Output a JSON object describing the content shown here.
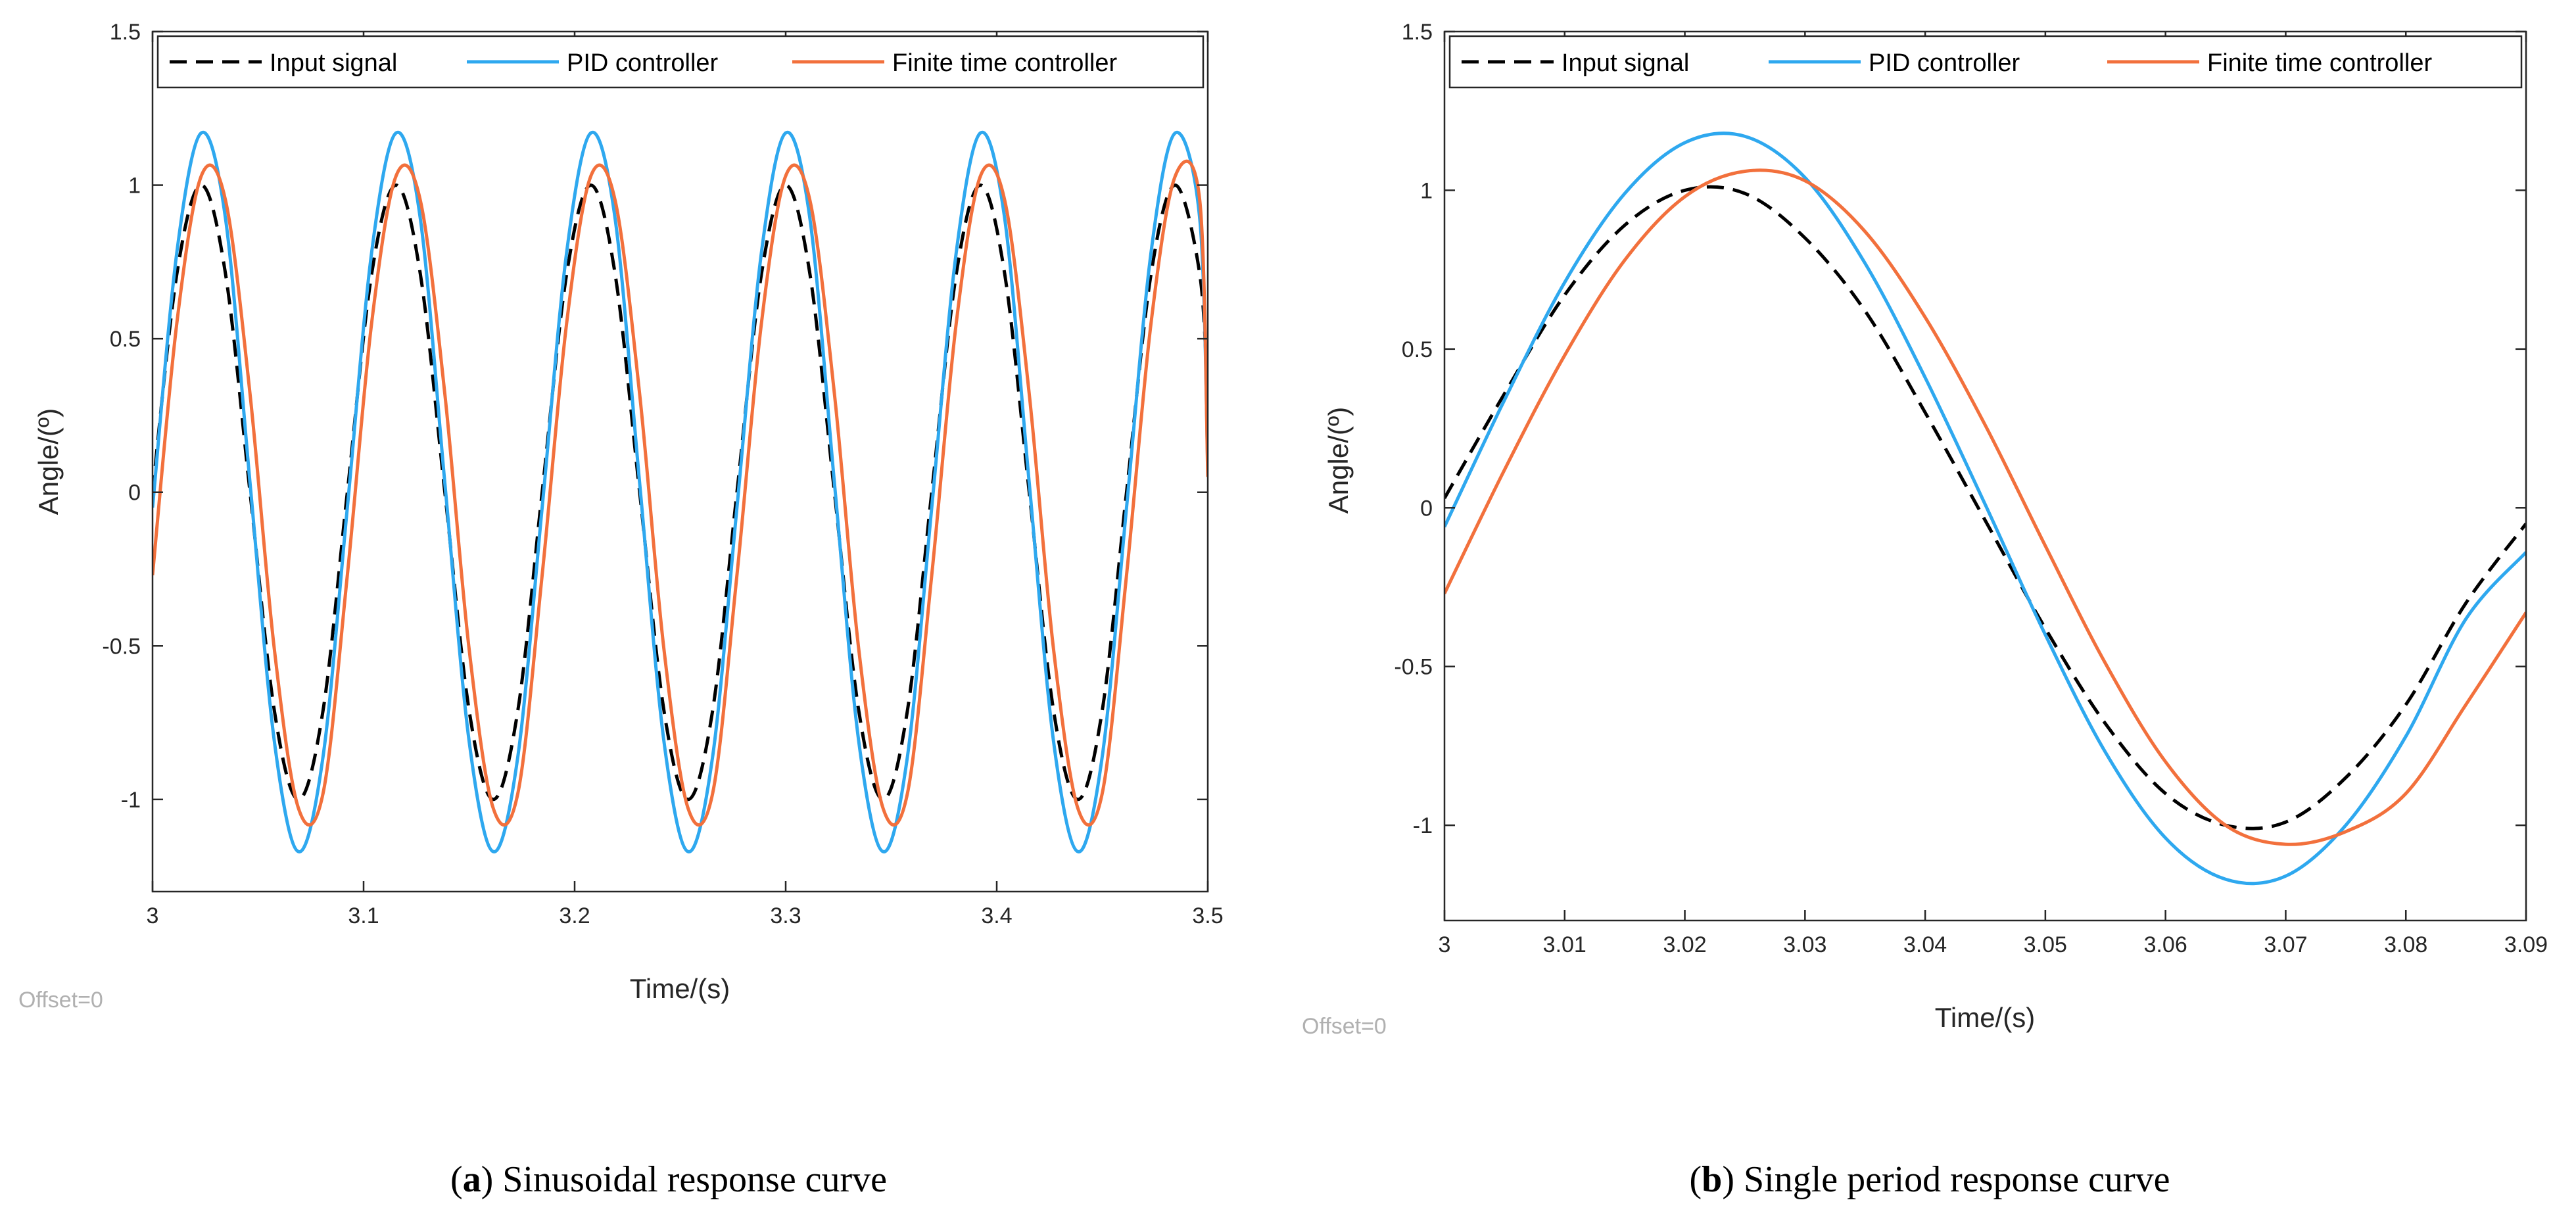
{
  "chart_data": [
    {
      "type": "line",
      "panel_label": "a",
      "caption": "Sinusoidal response curve",
      "xlabel": "Time/(s)",
      "ylabel": "Angle/(º)",
      "offset_text": "Offset=0",
      "xlim": [
        3,
        3.5
      ],
      "ylim": [
        -1.3,
        1.5
      ],
      "xticks": [
        3,
        3.1,
        3.2,
        3.3,
        3.4,
        3.5
      ],
      "xtick_labels": [
        "3",
        "3.1",
        "3.2",
        "3.3",
        "3.4",
        "3.5"
      ],
      "yticks": [
        -1,
        -0.5,
        0,
        0.5,
        1,
        1.5
      ],
      "ytick_labels": [
        "-1",
        "-0.5",
        "0",
        "0.5",
        "1",
        "1.5"
      ],
      "grid": false,
      "legend_position": "top",
      "series": [
        {
          "name": "Input signal",
          "color": "#000000",
          "style": "dashed",
          "x": [
            3,
            3.0115,
            3.0231,
            3.0346,
            3.0462,
            3.0577,
            3.0692,
            3.0808,
            3.0923,
            3.1038,
            3.1154,
            3.1269,
            3.1385,
            3.15,
            3.1615,
            3.1731,
            3.1846,
            3.1962,
            3.2077,
            3.2192,
            3.2308,
            3.2423,
            3.2538,
            3.2654,
            3.2769,
            3.2885,
            3.3,
            3.3115,
            3.3231,
            3.3346,
            3.3462,
            3.3577,
            3.3692,
            3.3808,
            3.3923,
            3.4038,
            3.4154,
            3.4269,
            3.4385,
            3.45,
            3.4615,
            3.4731,
            3.4846,
            3.4962,
            3.5
          ],
          "y": [
            0,
            0.71,
            1,
            0.71,
            0,
            -0.71,
            -1,
            -0.71,
            0,
            0.71,
            1,
            0.71,
            0,
            -0.71,
            -1,
            -0.71,
            0,
            0.71,
            1,
            0.71,
            0,
            -0.71,
            -1,
            -0.71,
            0,
            0.71,
            1,
            0.71,
            0,
            -0.71,
            -1,
            -0.71,
            0,
            0.71,
            1,
            0.71,
            0,
            -0.71,
            -1,
            -0.71,
            0,
            0.71,
            1,
            0.71,
            0.29
          ]
        },
        {
          "name": "PID controller",
          "color": "#2ea8ef",
          "style": "solid",
          "x": [
            3,
            3.0115,
            3.0231,
            3.0346,
            3.0462,
            3.0577,
            3.0692,
            3.0808,
            3.0923,
            3.1038,
            3.1154,
            3.1269,
            3.1385,
            3.15,
            3.1615,
            3.1731,
            3.1846,
            3.1962,
            3.2077,
            3.2192,
            3.2308,
            3.2423,
            3.2538,
            3.2654,
            3.2769,
            3.2885,
            3.3,
            3.3115,
            3.3231,
            3.3346,
            3.3462,
            3.3577,
            3.3692,
            3.3808,
            3.3923,
            3.4038,
            3.4154,
            3.4269,
            3.4385,
            3.45,
            3.4615,
            3.4731,
            3.4846,
            3.4962,
            3.5
          ],
          "y": [
            -0.05,
            0.78,
            1.17,
            0.89,
            0.03,
            -0.81,
            -1.17,
            -0.86,
            -0.05,
            0.78,
            1.17,
            0.89,
            0.03,
            -0.81,
            -1.17,
            -0.86,
            -0.05,
            0.78,
            1.17,
            0.89,
            0.03,
            -0.81,
            -1.17,
            -0.86,
            -0.05,
            0.78,
            1.17,
            0.89,
            0.03,
            -0.81,
            -1.17,
            -0.86,
            -0.05,
            0.78,
            1.17,
            0.89,
            0.03,
            -0.81,
            -1.17,
            -0.86,
            -0.05,
            0.78,
            1.17,
            0.89,
            0.08
          ]
        },
        {
          "name": "Finite time controller",
          "color": "#f2703c",
          "style": "solid",
          "x": [
            3,
            3.0115,
            3.0231,
            3.0346,
            3.0462,
            3.0577,
            3.0692,
            3.0808,
            3.0923,
            3.1038,
            3.1154,
            3.1269,
            3.1385,
            3.15,
            3.1615,
            3.1731,
            3.1846,
            3.1962,
            3.2077,
            3.2192,
            3.2308,
            3.2423,
            3.2538,
            3.2654,
            3.2769,
            3.2885,
            3.3,
            3.3115,
            3.3231,
            3.3346,
            3.3462,
            3.3577,
            3.3692,
            3.3808,
            3.3923,
            3.4038,
            3.4154,
            3.4269,
            3.4385,
            3.45,
            3.4615,
            3.4731,
            3.4846,
            3.4962,
            3.5
          ],
          "y": [
            -0.27,
            0.55,
            1.03,
            0.95,
            0.32,
            -0.51,
            -1.03,
            -0.98,
            -0.27,
            0.55,
            1.03,
            0.95,
            0.32,
            -0.51,
            -1.03,
            -0.98,
            -0.27,
            0.55,
            1.03,
            0.95,
            0.32,
            -0.51,
            -1.03,
            -0.98,
            -0.27,
            0.55,
            1.03,
            0.95,
            0.32,
            -0.51,
            -1.03,
            -0.98,
            -0.27,
            0.55,
            1.03,
            0.95,
            0.32,
            -0.51,
            -1.03,
            -0.98,
            -0.27,
            0.55,
            1.03,
            0.95,
            0.05
          ]
        }
      ]
    },
    {
      "type": "line",
      "panel_label": "b",
      "caption": "Single period response curve",
      "xlabel": "Time/(s)",
      "ylabel": "Angle/(º)",
      "offset_text": "Offset=0",
      "xlim": [
        3,
        3.09
      ],
      "ylim": [
        -1.3,
        1.5
      ],
      "xticks": [
        3,
        3.01,
        3.02,
        3.03,
        3.04,
        3.05,
        3.06,
        3.07,
        3.08,
        3.09
      ],
      "xtick_labels": [
        "3",
        "3.01",
        "3.02",
        "3.03",
        "3.04",
        "3.05",
        "3.06",
        "3.07",
        "3.08",
        "3.09"
      ],
      "yticks": [
        -1,
        -0.5,
        0,
        0.5,
        1,
        1.5
      ],
      "ytick_labels": [
        "-1",
        "-0.5",
        "0",
        "0.5",
        "1",
        "1.5"
      ],
      "grid": false,
      "legend_position": "top",
      "series": [
        {
          "name": "Input signal",
          "color": "#000000",
          "style": "dashed",
          "x": [
            3,
            3.005,
            3.01,
            3.015,
            3.02,
            3.025,
            3.03,
            3.035,
            3.04,
            3.045,
            3.05,
            3.055,
            3.06,
            3.065,
            3.07,
            3.075,
            3.08,
            3.085,
            3.09
          ],
          "y": [
            0.03,
            0.36,
            0.67,
            0.89,
            1,
            0.99,
            0.85,
            0.62,
            0.3,
            -0.04,
            -0.38,
            -0.68,
            -0.9,
            -1,
            -0.99,
            -0.85,
            -0.62,
            -0.3,
            -0.05
          ]
        },
        {
          "name": "PID controller",
          "color": "#2ea8ef",
          "style": "solid",
          "x": [
            3,
            3.005,
            3.01,
            3.015,
            3.02,
            3.025,
            3.03,
            3.035,
            3.04,
            3.045,
            3.05,
            3.055,
            3.06,
            3.065,
            3.07,
            3.075,
            3.08,
            3.085,
            3.09
          ],
          "y": [
            -0.06,
            0.34,
            0.71,
            0.99,
            1.15,
            1.17,
            1.04,
            0.77,
            0.41,
            0.01,
            -0.4,
            -0.77,
            -1.04,
            -1.17,
            -1.16,
            -1,
            -0.72,
            -0.35,
            -0.14
          ]
        },
        {
          "name": "Finite time controller",
          "color": "#f2703c",
          "style": "solid",
          "x": [
            3,
            3.005,
            3.01,
            3.015,
            3.02,
            3.025,
            3.03,
            3.035,
            3.04,
            3.045,
            3.05,
            3.055,
            3.06,
            3.065,
            3.07,
            3.075,
            3.08,
            3.085,
            3.09
          ],
          "y": [
            -0.27,
            0.12,
            0.48,
            0.78,
            0.98,
            1.06,
            1.03,
            0.87,
            0.6,
            0.26,
            -0.12,
            -0.49,
            -0.8,
            -1,
            -1.06,
            -1.02,
            -0.9,
            -0.62,
            -0.33
          ]
        }
      ]
    }
  ]
}
